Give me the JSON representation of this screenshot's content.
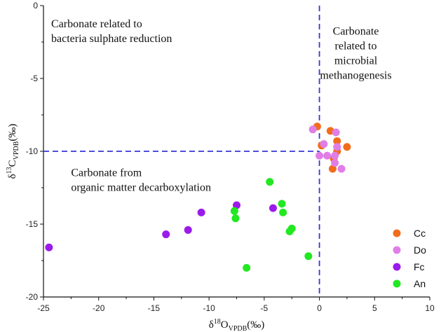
{
  "chart_data": {
    "type": "scatter",
    "title": "",
    "xlabel": {
      "symbol": "δ",
      "sup": "18",
      "main": "O",
      "sub": "VPDB",
      "unit": "(‰)"
    },
    "ylabel": {
      "symbol": "δ",
      "sup": "13",
      "main": "C",
      "sub": "VPDB",
      "unit": "(‰)"
    },
    "xlim": [
      -25,
      10
    ],
    "ylim": [
      -20,
      0
    ],
    "xticks": [
      -25,
      -20,
      -15,
      -10,
      -5,
      0,
      5,
      10
    ],
    "yticks": [
      0,
      -5,
      -10,
      -15,
      -20
    ],
    "grid": false,
    "legend_position": "bottom-right",
    "divider_lines": {
      "vertical_x": 0,
      "horizontal_y": -10,
      "horizontal_x_range": [
        -25,
        0
      ],
      "color": "#3535d8"
    },
    "annotations": [
      {
        "lines": [
          "Carbonate related to",
          "bacteria sulphate reduction"
        ],
        "anchor": [
          -24.3,
          -1.5
        ],
        "align": "start"
      },
      {
        "lines": [
          "Carbonate",
          "related to",
          "microbial",
          "methanogenesis"
        ],
        "anchor": [
          3.3,
          -2.0
        ],
        "align": "middle"
      },
      {
        "lines": [
          "Carbonate from",
          "organic matter decarboxylation"
        ],
        "anchor": [
          -22.5,
          -11.7
        ],
        "align": "start"
      }
    ],
    "series": [
      {
        "name": "Cc",
        "color": "#f26d1b",
        "points": [
          [
            -0.2,
            -8.3
          ],
          [
            1.0,
            -8.6
          ],
          [
            1.6,
            -9.3
          ],
          [
            0.2,
            -9.6
          ],
          [
            2.5,
            -9.7
          ],
          [
            1.6,
            -10.0
          ],
          [
            1.3,
            -10.5
          ],
          [
            1.2,
            -11.2
          ]
        ]
      },
      {
        "name": "Do",
        "color": "#e07ee6",
        "points": [
          [
            -0.6,
            -8.5
          ],
          [
            1.5,
            -8.7
          ],
          [
            0.4,
            -9.5
          ],
          [
            1.6,
            -9.7
          ],
          [
            0.0,
            -10.3
          ],
          [
            0.7,
            -10.3
          ],
          [
            1.4,
            -10.3
          ],
          [
            1.4,
            -10.8
          ],
          [
            2.0,
            -11.2
          ]
        ]
      },
      {
        "name": "Fc",
        "color": "#9a1bea",
        "points": [
          [
            -24.5,
            -16.6
          ],
          [
            -13.9,
            -15.7
          ],
          [
            -11.9,
            -15.4
          ],
          [
            -10.7,
            -14.2
          ],
          [
            -7.5,
            -13.7
          ],
          [
            -4.2,
            -13.9
          ]
        ]
      },
      {
        "name": "An",
        "color": "#22e822",
        "points": [
          [
            -4.5,
            -12.1
          ],
          [
            -3.4,
            -13.6
          ],
          [
            -7.7,
            -14.1
          ],
          [
            -3.3,
            -14.2
          ],
          [
            -7.6,
            -14.6
          ],
          [
            -2.5,
            -15.3
          ],
          [
            -2.7,
            -15.5
          ],
          [
            -1.0,
            -17.2
          ],
          [
            -6.6,
            -18.0
          ]
        ]
      }
    ]
  }
}
